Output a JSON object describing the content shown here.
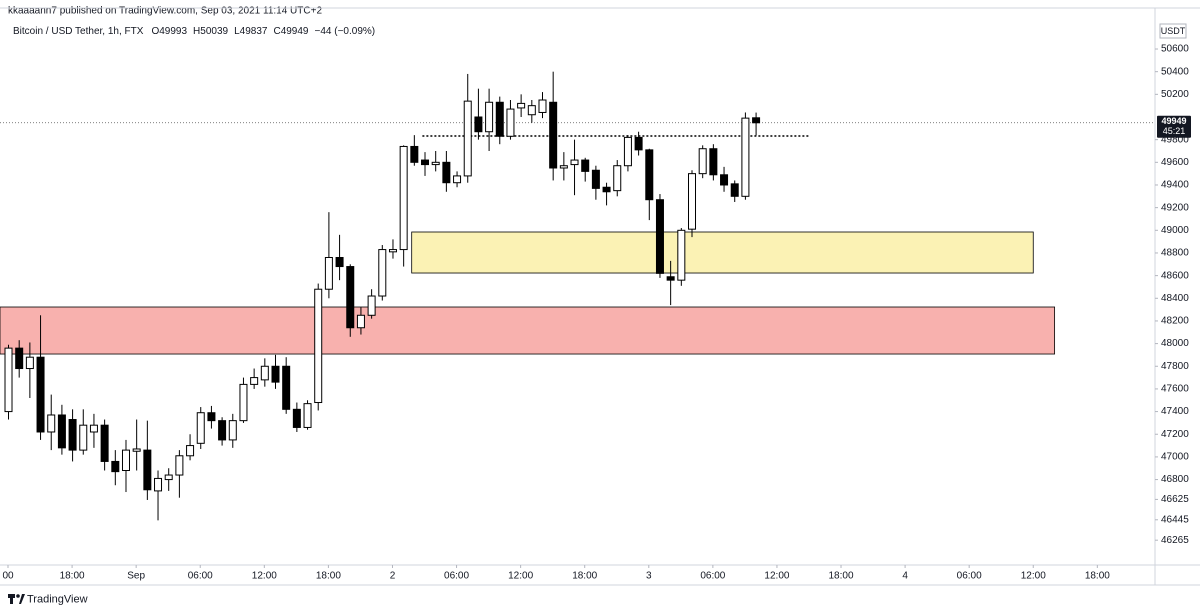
{
  "header": {
    "published": "kkaaaann7 published on TradingView.com, Sep 03, 2021 11:14 UTC+2"
  },
  "chart_data": {
    "type": "candlestick",
    "title": "Bitcoin / USD Tether, 1h, FTX",
    "ohlc_labels": [
      "O",
      "H",
      "L",
      "C"
    ],
    "change": "−44 (−0.09%)",
    "currency": "USDT",
    "countdown": "45:21",
    "x": [
      0,
      1,
      2,
      3,
      4,
      5,
      6,
      7,
      8,
      9,
      10,
      11,
      12,
      13,
      14,
      15,
      16,
      17,
      18,
      19,
      20,
      21,
      22,
      23,
      24,
      25,
      26,
      27,
      28,
      29,
      30,
      31,
      32,
      33,
      34,
      35,
      36,
      37,
      38,
      39,
      40,
      41,
      42,
      43,
      44,
      45,
      46,
      47,
      48,
      49,
      50,
      51,
      52,
      53,
      54,
      55,
      56,
      57,
      58,
      59,
      60,
      61,
      62,
      63,
      64,
      65,
      66,
      67,
      68,
      69,
      70
    ],
    "open": [
      47400,
      47960,
      47780,
      47880,
      47220,
      47370,
      47330,
      47060,
      47220,
      47280,
      46960,
      46880,
      47050,
      47060,
      46700,
      46800,
      46840,
      47010,
      47120,
      47390,
      47320,
      47150,
      47320,
      47640,
      47680,
      47800,
      47800,
      47420,
      47260,
      47480,
      48480,
      48760,
      48680,
      48140,
      48250,
      48420,
      48810,
      48830,
      49740,
      49620,
      49580,
      49600,
      49420,
      49480,
      50000,
      49870,
      50130,
      49830,
      50080,
      50020,
      50040,
      50130,
      49550,
      49580,
      49620,
      49530,
      49380,
      49350,
      49570,
      49820,
      49710,
      49270,
      48590,
      48560,
      49010,
      49500,
      49720,
      49490,
      49410,
      49300,
      49993
    ],
    "high": [
      47990,
      48030,
      48010,
      48250,
      47550,
      47460,
      47420,
      47420,
      47380,
      47330,
      47060,
      47150,
      47330,
      47320,
      46880,
      46900,
      47060,
      47200,
      47440,
      47450,
      47350,
      47380,
      47700,
      47780,
      47870,
      47900,
      47880,
      47480,
      47500,
      48530,
      49160,
      48960,
      48700,
      48320,
      48480,
      48870,
      48920,
      49750,
      49840,
      49690,
      49700,
      49700,
      49520,
      50380,
      50250,
      50250,
      50180,
      50150,
      50200,
      50150,
      50220,
      50400,
      49690,
      49800,
      49640,
      49570,
      49420,
      49620,
      49840,
      49870,
      49720,
      49320,
      48730,
      49020,
      49530,
      49750,
      49760,
      49560,
      49440,
      50040,
      50039
    ],
    "low": [
      47330,
      47700,
      47520,
      47150,
      47060,
      47020,
      46960,
      47020,
      47080,
      46880,
      46750,
      46690,
      46880,
      46620,
      46440,
      46700,
      46640,
      46970,
      47070,
      47250,
      47100,
      47080,
      47300,
      47600,
      47620,
      47600,
      47380,
      47220,
      47240,
      47410,
      48400,
      48560,
      48060,
      48080,
      48220,
      48380,
      48750,
      48680,
      49570,
      49480,
      49520,
      49340,
      49380,
      49420,
      49800,
      49700,
      49760,
      49800,
      50000,
      49950,
      49990,
      49440,
      49440,
      49310,
      49430,
      49270,
      49220,
      49300,
      49520,
      49660,
      49090,
      48580,
      48340,
      48510,
      48940,
      49460,
      49440,
      49340,
      49250,
      49270,
      49837
    ],
    "close": [
      47960,
      47780,
      47880,
      47220,
      47370,
      47080,
      47060,
      47280,
      47280,
      46960,
      46870,
      47060,
      47070,
      46710,
      46810,
      46840,
      47010,
      47100,
      47390,
      47320,
      47150,
      47320,
      47640,
      47700,
      47800,
      47660,
      47420,
      47260,
      47470,
      48480,
      48760,
      48680,
      48140,
      48250,
      48420,
      48830,
      48830,
      49740,
      49600,
      49580,
      49600,
      49420,
      49480,
      50140,
      49870,
      50130,
      49830,
      50070,
      50120,
      50100,
      50150,
      49550,
      49570,
      49620,
      49520,
      49370,
      49340,
      49570,
      49820,
      49710,
      49270,
      48620,
      48560,
      49000,
      49500,
      49720,
      49490,
      49400,
      49300,
      49990,
      49949
    ],
    "colors": {
      "up": "#ffffff",
      "down": "#000000",
      "outline": "#000000"
    },
    "xlim": [
      -0.75,
      107.4
    ],
    "xticks": [
      {
        "value": 0,
        "label": "00"
      },
      {
        "value": 6,
        "label": "18:00"
      },
      {
        "value": 12,
        "label": "Sep"
      },
      {
        "value": 18,
        "label": "06:00"
      },
      {
        "value": 24,
        "label": "12:00"
      },
      {
        "value": 30,
        "label": "18:00"
      },
      {
        "value": 36,
        "label": "2"
      },
      {
        "value": 42,
        "label": "06:00"
      },
      {
        "value": 48,
        "label": "12:00"
      },
      {
        "value": 54,
        "label": "18:00"
      },
      {
        "value": 60,
        "label": "3"
      },
      {
        "value": 66,
        "label": "06:00"
      },
      {
        "value": 72,
        "label": "12:00"
      },
      {
        "value": 78,
        "label": "18:00"
      },
      {
        "value": 84,
        "label": "4"
      },
      {
        "value": 90,
        "label": "06:00"
      },
      {
        "value": 96,
        "label": "12:00"
      },
      {
        "value": 102,
        "label": "18:00"
      }
    ],
    "ylim": [
      46046,
      50962
    ],
    "yticks": [
      46265,
      46445,
      46625,
      46800,
      47000,
      47200,
      47400,
      47600,
      47800,
      48000,
      48200,
      48400,
      48600,
      48800,
      49000,
      49200,
      49400,
      49600,
      49800,
      50200,
      50400,
      50600
    ],
    "zones": [
      {
        "x": [
          -0.75,
          98
        ],
        "y": [
          47908,
          48323
        ],
        "color": "#f8b1ae"
      },
      {
        "x": [
          37.8,
          96
        ],
        "y": [
          48623,
          48985
        ],
        "color": "#fbf2b4"
      }
    ],
    "levels": [
      {
        "x": [
          38.8,
          75
        ],
        "value": 49832
      }
    ]
  },
  "footer": {
    "brand": "TradingView"
  }
}
